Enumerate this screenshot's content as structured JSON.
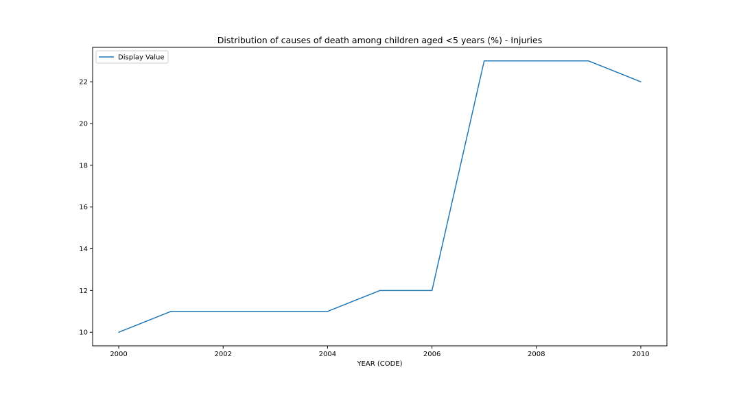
{
  "chart_data": {
    "type": "line",
    "title": "Distribution of causes of death among children aged <5 years (%) - Injuries",
    "xlabel": "YEAR (CODE)",
    "ylabel": "",
    "x": [
      2000,
      2001,
      2002,
      2003,
      2004,
      2005,
      2006,
      2007,
      2008,
      2009,
      2010
    ],
    "series": [
      {
        "name": "Display Value",
        "values": [
          10,
          11,
          11,
          11,
          11,
          12,
          12,
          23,
          23,
          23,
          22
        ],
        "color": "#1f77b4"
      }
    ],
    "xlim": [
      1999.5,
      2010.5
    ],
    "ylim": [
      9.35,
      23.65
    ],
    "xticks": [
      2000,
      2002,
      2004,
      2006,
      2008,
      2010
    ],
    "xtick_labels": [
      "2000",
      "2002",
      "2004",
      "2006",
      "2008",
      "2010"
    ],
    "yticks": [
      10,
      12,
      14,
      16,
      18,
      20,
      22
    ],
    "ytick_labels": [
      "10",
      "12",
      "14",
      "16",
      "18",
      "20",
      "22"
    ],
    "grid": false,
    "legend": "upper-left"
  }
}
